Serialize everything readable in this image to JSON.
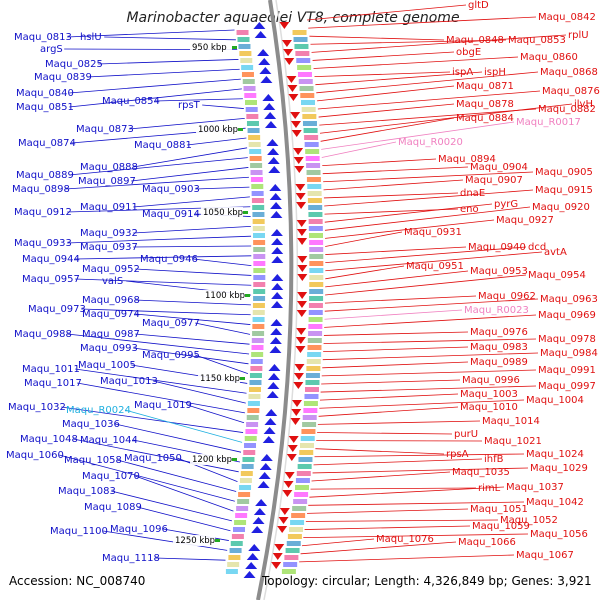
{
  "title": "Marinobacter aquaeolei VT8, complete genome",
  "footer": {
    "accession": "Accession: NC_008740",
    "stats": "Topology: circular; Length: 4,326,849 bp; Genes: 3,921"
  },
  "colors": {
    "left_labels": "#1010c8",
    "right_labels": "#e01010",
    "pink_rna": "#f080c0",
    "cyan_rna": "#20b0e0",
    "backbone": "#999999",
    "tick": "#22aa22",
    "forward_arrow": "#2020e0",
    "reverse_arrow": "#e01010"
  },
  "ticks": [
    "950 kbp",
    "1000 kbp",
    "1050 kbp",
    "1100 kbp",
    "1150 kbp",
    "1200 kbp",
    "1250 kbp"
  ],
  "left_labels": [
    "Maqu_0813",
    "hslU",
    "argS",
    "Maqu_0825",
    "Maqu_0839",
    "Maqu_0840",
    "Maqu_0851",
    "Maqu_0854",
    "rpsT",
    "Maqu_0873",
    "Maqu_0874",
    "Maqu_0881",
    "Maqu_0888",
    "Maqu_0889",
    "Maqu_0897",
    "Maqu_0898",
    "Maqu_0903",
    "Maqu_0911",
    "Maqu_0912",
    "Maqu_0914",
    "Maqu_0932",
    "Maqu_0933",
    "Maqu_0937",
    "Maqu_0944",
    "Maqu_0946",
    "Maqu_0952",
    "Maqu_0957",
    "valS",
    "Maqu_0968",
    "Maqu_0973",
    "Maqu_0974",
    "Maqu_0977",
    "Maqu_0987",
    "Maqu_0988",
    "Maqu_0993",
    "Maqu_0995",
    "Maqu_1005",
    "Maqu_1011",
    "Maqu_1013",
    "Maqu_1017",
    "Maqu_1019",
    "Maqu_1032",
    "Maqu_R0024",
    "Maqu_1036",
    "Maqu_1044",
    "Maqu_1048",
    "Maqu_1050",
    "Maqu_1058",
    "Maqu_1060",
    "Maqu_1070",
    "Maqu_1083",
    "Maqu_1089",
    "Maqu_1096",
    "Maqu_1100",
    "Maqu_1118"
  ],
  "right_labels": [
    "gltD",
    "Maqu_0842",
    "Maqu_0848",
    "Maqu_0853",
    "rplU",
    "obgE",
    "Maqu_0860",
    "ispA",
    "ispH",
    "Maqu_0868",
    "Maqu_0871",
    "Maqu_0876",
    "Maqu_0878",
    "Maqu_0882",
    "ilvH",
    "Maqu_0884",
    "Maqu_R0017",
    "Maqu_R0020",
    "Maqu_0894",
    "Maqu_0904",
    "Maqu_0905",
    "Maqu_0907",
    "dnaE",
    "Maqu_0915",
    "eno",
    "pyrG",
    "Maqu_0920",
    "Maqu_0927",
    "Maqu_0931",
    "Maqu_0940",
    "dcd",
    "avtA",
    "Maqu_0951",
    "Maqu_0953",
    "Maqu_0954",
    "Maqu_0962",
    "Maqu_0963",
    "Maqu_R0023",
    "Maqu_0969",
    "Maqu_0976",
    "Maqu_0978",
    "Maqu_0983",
    "Maqu_0984",
    "Maqu_0989",
    "Maqu_0991",
    "Maqu_0996",
    "Maqu_0997",
    "Maqu_1003",
    "Maqu_1004",
    "Maqu_1010",
    "Maqu_1014",
    "purU",
    "Maqu_1021",
    "rpsA",
    "Maqu_1024",
    "ihfB",
    "Maqu_1029",
    "Maqu_1035",
    "rimL",
    "Maqu_1037",
    "Maqu_1042",
    "Maqu_1051",
    "Maqu_1052",
    "Maqu_1059",
    "Maqu_1056",
    "Maqu_1076",
    "Maqu_1066",
    "Maqu_1067"
  ]
}
